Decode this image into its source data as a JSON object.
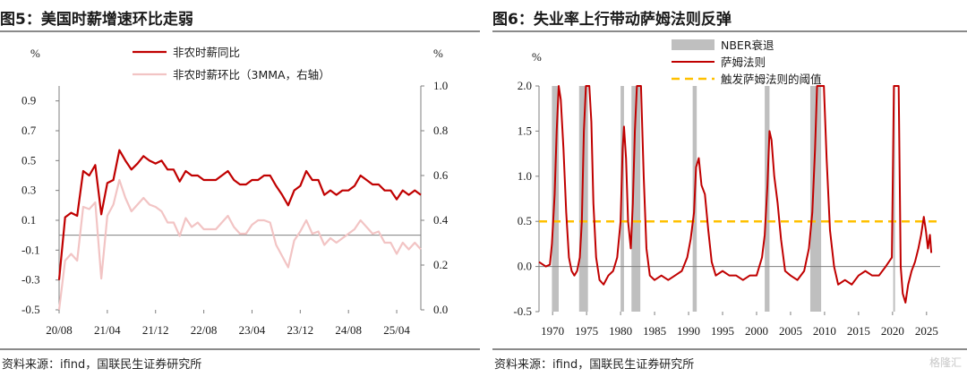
{
  "panels": {
    "left": {
      "title": "图5：美国时薪增速环比走弱",
      "source": "资料来源：ifind，国联民生证券研究所"
    },
    "right": {
      "title": "图6：失业率上行带动萨姆法则反弹",
      "source": "资料来源：ifind，国联民生证券研究所"
    }
  },
  "watermark": "格隆汇",
  "colors": {
    "red": "#c00000",
    "pink": "#f2c4c4",
    "gray": "#bfbfbf",
    "orange": "#ffc000"
  },
  "chart_data": [
    {
      "type": "line",
      "title": "图5：美国时薪增速环比走弱",
      "left_axis": {
        "unit": "%",
        "ylim": [
          -0.5,
          1.0
        ],
        "ticks": [
          "0.9",
          "0.7",
          "0.5",
          "0.3",
          "0.1",
          "-0.1",
          "-0.3",
          "-0.5"
        ]
      },
      "right_axis": {
        "unit": "%",
        "ylim": [
          0.0,
          1.0
        ],
        "ticks": [
          "1.0",
          "0.8",
          "0.6",
          "0.4",
          "0.2",
          "0.0"
        ]
      },
      "x_tick_labels": [
        "20/08",
        "21/04",
        "21/12",
        "22/08",
        "23/04",
        "23/12",
        "24/08",
        "25/04"
      ],
      "x_start": "2020-08",
      "legend": [
        "非农时薪同比",
        "非农时薪环比（3MMA，右轴）"
      ],
      "series": [
        {
          "name": "非农时薪同比",
          "axis": "left",
          "values": [
            -0.3,
            0.12,
            0.15,
            0.13,
            0.43,
            0.4,
            0.47,
            0.14,
            0.35,
            0.37,
            0.57,
            0.5,
            0.44,
            0.48,
            0.53,
            0.5,
            0.48,
            0.5,
            0.44,
            0.44,
            0.36,
            0.43,
            0.4,
            0.4,
            0.37,
            0.37,
            0.37,
            0.4,
            0.43,
            0.37,
            0.34,
            0.34,
            0.37,
            0.37,
            0.4,
            0.4,
            0.33,
            0.27,
            0.2,
            0.3,
            0.33,
            0.43,
            0.37,
            0.37,
            0.27,
            0.3,
            0.27,
            0.3,
            0.3,
            0.33,
            0.4,
            0.37,
            0.34,
            0.34,
            0.3,
            0.3,
            0.24,
            0.3,
            0.27,
            0.3,
            0.27
          ]
        },
        {
          "name": "非农时薪环比（3MMA，右轴）",
          "axis": "right",
          "values": [
            0.0,
            0.22,
            0.25,
            0.22,
            0.46,
            0.45,
            0.48,
            0.14,
            0.42,
            0.47,
            0.58,
            0.5,
            0.44,
            0.47,
            0.5,
            0.47,
            0.46,
            0.44,
            0.39,
            0.39,
            0.33,
            0.41,
            0.37,
            0.39,
            0.36,
            0.36,
            0.36,
            0.39,
            0.42,
            0.37,
            0.34,
            0.34,
            0.38,
            0.4,
            0.4,
            0.39,
            0.29,
            0.24,
            0.19,
            0.31,
            0.35,
            0.4,
            0.34,
            0.35,
            0.29,
            0.32,
            0.3,
            0.32,
            0.34,
            0.36,
            0.4,
            0.37,
            0.34,
            0.35,
            0.3,
            0.3,
            0.25,
            0.3,
            0.27,
            0.3,
            0.27
          ]
        }
      ]
    },
    {
      "type": "line",
      "title": "图6：失业率上行带动萨姆法则反弹",
      "y_axis": {
        "unit": "%",
        "ylim": [
          -0.5,
          2.0
        ],
        "ticks": [
          "2.0",
          "1.5",
          "1.0",
          "0.5",
          "0.0",
          "-0.5"
        ]
      },
      "xlim": [
        1968,
        2027
      ],
      "x_tick_labels": [
        "1970",
        "1975",
        "1980",
        "1985",
        "1990",
        "1995",
        "2000",
        "2005",
        "2010",
        "2015",
        "2020",
        "2025"
      ],
      "legend": [
        "NBER衰退",
        "萨姆法则",
        "触发萨姆法则的阈值"
      ],
      "threshold": 0.5,
      "recessions": [
        [
          1969.9,
          1970.9
        ],
        [
          1973.9,
          1975.2
        ],
        [
          1980.0,
          1980.5
        ],
        [
          1981.6,
          1982.9
        ],
        [
          1990.6,
          1991.2
        ],
        [
          2001.2,
          2001.9
        ],
        [
          2007.9,
          2009.5
        ],
        [
          2020.1,
          2020.3
        ]
      ],
      "series": [
        {
          "name": "萨姆法则",
          "points": [
            [
              1968.0,
              0.05
            ],
            [
              1969.0,
              0.0
            ],
            [
              1969.6,
              0.02
            ],
            [
              1969.9,
              0.25
            ],
            [
              1970.3,
              0.8
            ],
            [
              1970.6,
              1.5
            ],
            [
              1970.9,
              2.0
            ],
            [
              1971.2,
              1.85
            ],
            [
              1971.6,
              1.3
            ],
            [
              1972.0,
              0.6
            ],
            [
              1972.4,
              0.1
            ],
            [
              1972.8,
              -0.05
            ],
            [
              1973.2,
              -0.1
            ],
            [
              1973.6,
              -0.05
            ],
            [
              1974.0,
              0.1
            ],
            [
              1974.3,
              0.5
            ],
            [
              1974.6,
              1.5
            ],
            [
              1974.9,
              2.0
            ],
            [
              1975.4,
              2.0
            ],
            [
              1975.7,
              1.6
            ],
            [
              1976.0,
              0.7
            ],
            [
              1976.4,
              0.1
            ],
            [
              1976.9,
              -0.15
            ],
            [
              1977.5,
              -0.2
            ],
            [
              1978.2,
              -0.1
            ],
            [
              1978.9,
              -0.05
            ],
            [
              1979.5,
              0.1
            ],
            [
              1980.0,
              0.5
            ],
            [
              1980.3,
              1.3
            ],
            [
              1980.5,
              1.55
            ],
            [
              1980.8,
              1.2
            ],
            [
              1981.1,
              0.5
            ],
            [
              1981.5,
              0.2
            ],
            [
              1981.8,
              0.7
            ],
            [
              1982.1,
              1.5
            ],
            [
              1982.4,
              2.0
            ],
            [
              1983.0,
              2.0
            ],
            [
              1983.4,
              1.0
            ],
            [
              1983.8,
              0.2
            ],
            [
              1984.3,
              -0.1
            ],
            [
              1985.0,
              -0.15
            ],
            [
              1986.0,
              -0.1
            ],
            [
              1987.0,
              -0.15
            ],
            [
              1988.0,
              -0.1
            ],
            [
              1989.0,
              -0.05
            ],
            [
              1989.8,
              0.1
            ],
            [
              1990.3,
              0.3
            ],
            [
              1990.8,
              0.6
            ],
            [
              1991.1,
              1.1
            ],
            [
              1991.5,
              1.2
            ],
            [
              1991.9,
              0.9
            ],
            [
              1992.4,
              0.8
            ],
            [
              1992.9,
              0.4
            ],
            [
              1993.4,
              0.05
            ],
            [
              1994.0,
              -0.1
            ],
            [
              1995.0,
              -0.05
            ],
            [
              1996.0,
              -0.1
            ],
            [
              1997.0,
              -0.1
            ],
            [
              1998.0,
              -0.15
            ],
            [
              1999.0,
              -0.1
            ],
            [
              2000.0,
              -0.1
            ],
            [
              2000.8,
              0.1
            ],
            [
              2001.2,
              0.35
            ],
            [
              2001.6,
              0.9
            ],
            [
              2001.9,
              1.5
            ],
            [
              2002.2,
              1.4
            ],
            [
              2002.6,
              1.0
            ],
            [
              2003.1,
              0.7
            ],
            [
              2003.6,
              0.3
            ],
            [
              2004.2,
              -0.05
            ],
            [
              2005.0,
              -0.1
            ],
            [
              2006.0,
              -0.15
            ],
            [
              2007.0,
              -0.05
            ],
            [
              2007.7,
              0.2
            ],
            [
              2008.2,
              0.6
            ],
            [
              2008.6,
              1.3
            ],
            [
              2008.9,
              2.0
            ],
            [
              2009.9,
              2.0
            ],
            [
              2010.3,
              1.2
            ],
            [
              2010.8,
              0.4
            ],
            [
              2011.4,
              0.0
            ],
            [
              2012.0,
              -0.2
            ],
            [
              2013.0,
              -0.15
            ],
            [
              2014.0,
              -0.2
            ],
            [
              2015.0,
              -0.1
            ],
            [
              2016.0,
              -0.05
            ],
            [
              2017.0,
              -0.1
            ],
            [
              2018.0,
              -0.1
            ],
            [
              2019.0,
              0.0
            ],
            [
              2019.9,
              0.1
            ],
            [
              2020.2,
              2.0
            ],
            [
              2020.9,
              2.0
            ],
            [
              2021.2,
              0.0
            ],
            [
              2021.5,
              -0.3
            ],
            [
              2021.9,
              -0.4
            ],
            [
              2022.3,
              -0.2
            ],
            [
              2022.8,
              -0.05
            ],
            [
              2023.3,
              0.05
            ],
            [
              2023.8,
              0.2
            ],
            [
              2024.2,
              0.35
            ],
            [
              2024.6,
              0.55
            ],
            [
              2024.9,
              0.4
            ],
            [
              2025.2,
              0.2
            ],
            [
              2025.5,
              0.35
            ],
            [
              2025.7,
              0.15
            ]
          ]
        }
      ]
    }
  ]
}
